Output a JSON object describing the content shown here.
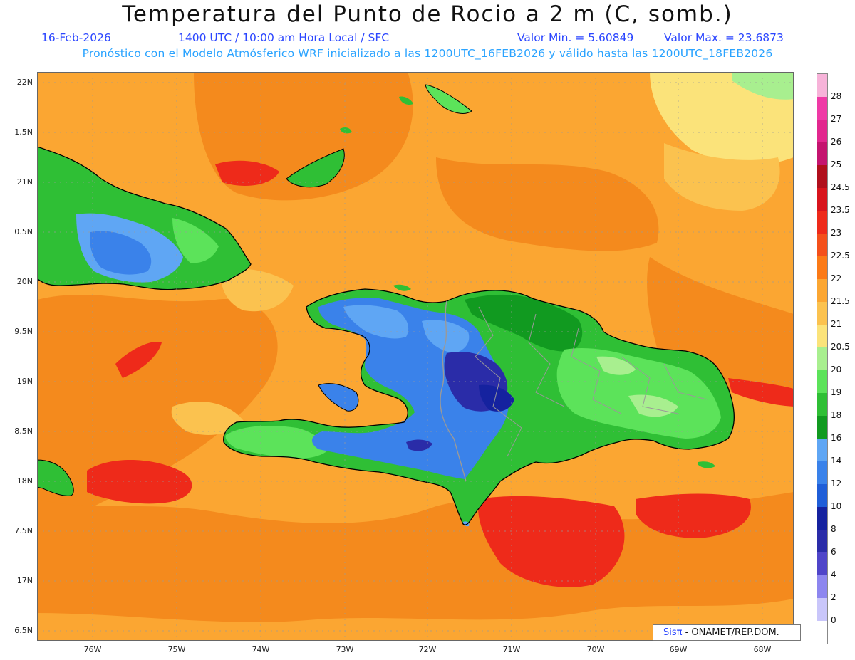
{
  "title": "Temperatura del Punto de Rocio a 2 m (C, somb.)",
  "header": {
    "date": "16-Feb-2026",
    "time": "1400 UTC / 10:00 am Hora Local / SFC",
    "value_min": "Valor Min. = 5.60849",
    "value_max": "Valor Max. = 23.6873",
    "model_line": "Pronóstico con el Modelo Atmósferico WRF inicializado a las 1200UTC_16FEB2026 y válido hasta las  1200UTC_18FEB2026"
  },
  "map": {
    "lat_labels": [
      "22N",
      "1.5N",
      "21N",
      "0.5N",
      "20N",
      "9.5N",
      "19N",
      "8.5N",
      "18N",
      "7.5N",
      "17N",
      "6.5N"
    ],
    "lon_labels": [
      "76W",
      "75W",
      "74W",
      "73W",
      "72W",
      "71W",
      "70W",
      "69W",
      "68W"
    ]
  },
  "colorbar": {
    "levels": [
      "28",
      "27",
      "26",
      "25",
      "24.5",
      "23.5",
      "23",
      "22.5",
      "22",
      "21.5",
      "21",
      "20.5",
      "20",
      "19",
      "18",
      "16",
      "14",
      "12",
      "10",
      "8",
      "6",
      "4",
      "2",
      "0"
    ],
    "colors": [
      "#f7b3d9",
      "#ef3aa6",
      "#e2278e",
      "#c4146f",
      "#b00f1c",
      "#d8141c",
      "#ee2a1a",
      "#f4501b",
      "#fb7a17",
      "#fba632",
      "#fbc24f",
      "#fbe37a",
      "#a8ef8f",
      "#5ce35a",
      "#2fbf35",
      "#119a20",
      "#5fa6f4",
      "#3a82ea",
      "#1f5ed8",
      "#15229f",
      "#2a2ca8",
      "#4f45c9",
      "#8d86ef",
      "#c9c6fa",
      "#ffffff"
    ]
  },
  "credit": {
    "logo": "Sisπ",
    "text": "- ONAMET/REP.DOM."
  },
  "palette": {
    "ocean_orange": "#fba632",
    "ocean_dark_orange": "#f48a1d",
    "ocean_red": "#ee2a1a",
    "light_yellow": "#fbe37a",
    "land_green": "#2fbf35",
    "land_light_green": "#5ce35a",
    "land_blue": "#3a82ea",
    "land_light_blue": "#5fa6f4",
    "land_dark_blue": "#2a2ca8"
  }
}
